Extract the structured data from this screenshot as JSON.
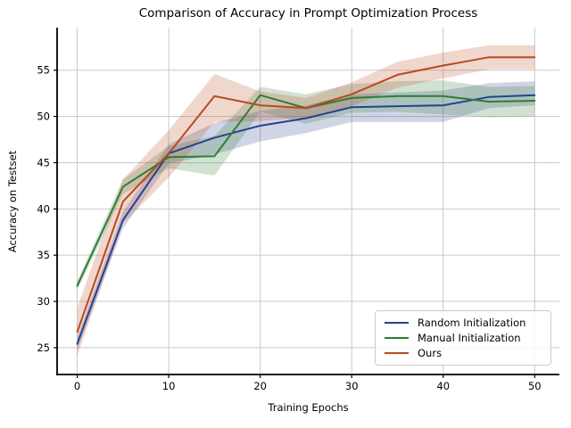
{
  "chart_data": {
    "type": "line",
    "title": "Comparison of Accuracy in Prompt Optimization Process",
    "xlabel": "Training Epochs",
    "ylabel": "Accuracy on Testset",
    "x": [
      0,
      5,
      10,
      15,
      20,
      25,
      30,
      35,
      40,
      45,
      50
    ],
    "xticks": [
      0,
      10,
      20,
      30,
      40,
      50
    ],
    "yticks": [
      25,
      30,
      35,
      40,
      45,
      50,
      55
    ],
    "xlim": [
      -2.2,
      52.7
    ],
    "ylim": [
      22.1,
      59.6
    ],
    "grid": true,
    "grid_color": "#c9c9c9",
    "legend_position": "lower right",
    "series": [
      {
        "name": "Random Initialization",
        "color": "#28408f",
        "values": [
          25.4,
          38.8,
          46.0,
          47.7,
          49.0,
          49.8,
          51.0,
          51.1,
          51.2,
          52.1,
          52.3
        ],
        "band_lower": [
          24.7,
          37.9,
          44.9,
          45.9,
          47.3,
          48.2,
          49.4,
          49.4,
          49.4,
          50.9,
          51.2
        ],
        "band_upper": [
          26.1,
          39.7,
          47.0,
          49.3,
          50.6,
          51.2,
          52.4,
          52.6,
          52.8,
          53.6,
          53.8
        ]
      },
      {
        "name": "Manual Initialization",
        "color": "#2e7d32",
        "values": [
          31.7,
          42.4,
          45.6,
          45.7,
          52.3,
          50.9,
          52.0,
          52.2,
          52.2,
          51.6,
          51.7
        ],
        "band_lower": [
          31.2,
          41.6,
          44.4,
          43.6,
          50.5,
          49.2,
          50.4,
          50.5,
          50.2,
          49.9,
          50.0
        ],
        "band_upper": [
          32.2,
          43.2,
          46.8,
          47.9,
          53.2,
          52.4,
          53.5,
          53.8,
          53.9,
          53.2,
          53.3
        ]
      },
      {
        "name": "Ours",
        "color": "#b94a20",
        "values": [
          26.7,
          40.8,
          46.0,
          52.2,
          51.2,
          50.9,
          52.4,
          54.5,
          55.5,
          56.4,
          56.4
        ],
        "band_lower": [
          24.1,
          38.4,
          43.4,
          49.4,
          49.5,
          49.9,
          51.1,
          53.1,
          54.1,
          55.1,
          55.1
        ],
        "band_upper": [
          29.3,
          43.2,
          48.5,
          54.6,
          52.7,
          52.0,
          53.7,
          55.9,
          56.9,
          57.7,
          57.7
        ]
      }
    ],
    "band_opacity": 0.22
  }
}
